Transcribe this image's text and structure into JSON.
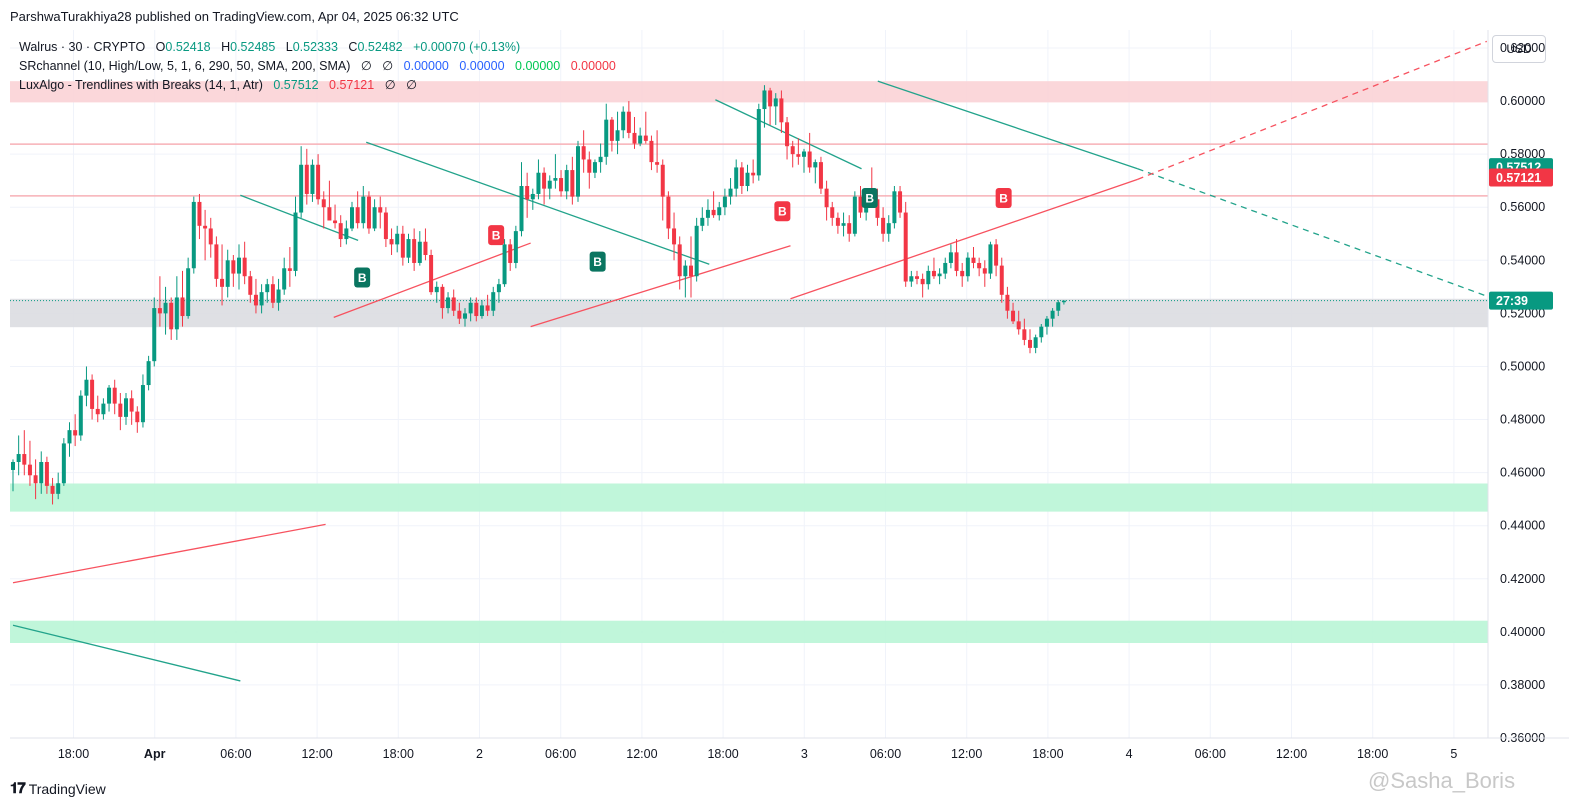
{
  "publisher": "ParshwaTurakhiya28 published on TradingView.com, Apr 04, 2025 06:32 UTC",
  "legend": {
    "symbol": "Walrus · 30 · CRYPTO",
    "o_label": "O",
    "o": "0.52418",
    "h_label": "H",
    "h": "0.52485",
    "l_label": "L",
    "l": "0.52333",
    "c_label": "C",
    "c": "0.52482",
    "change": "+0.00070 (+0.13%)",
    "sr_name": "SRchannel (10, High/Low, 5, 1, 6, 290, 50, SMA, 200, SMA)",
    "sr_null1": "∅",
    "sr_null2": "∅",
    "sr_v1": "0.00000",
    "sr_v2": "0.00000",
    "sr_v3": "0.00000",
    "sr_v4": "0.00000",
    "lux_name": "LuxAlgo - Trendlines with Breaks (14, 1, Atr)",
    "lux_v1": "0.57512",
    "lux_v2": "0.57121",
    "lux_null1": "∅",
    "lux_null2": "∅"
  },
  "currency_button": "USD",
  "footer_logo": "TradingView",
  "watermark": "@Sasha_Boris",
  "colors": {
    "up": "#089981",
    "down": "#f23645",
    "resistance_zone": "#fbd3d6",
    "support_zone": "#b9f5d6",
    "current_zone": "#dcdde1",
    "trend_down": "#22a38b",
    "trend_up": "#f7525f"
  },
  "chart_data": {
    "type": "candlestick",
    "symbol": "Walrus · 30 · CRYPTO",
    "ylim": [
      0.36,
      0.62
    ],
    "y_ticks": [
      "0.62000",
      "0.60000",
      "0.58000",
      "0.56000",
      "0.54000",
      "0.52000",
      "0.50000",
      "0.48000",
      "0.46000",
      "0.44000",
      "0.42000",
      "0.40000",
      "0.38000",
      "0.36000"
    ],
    "x_ticks": [
      "18:00",
      "Apr",
      "06:00",
      "12:00",
      "18:00",
      "2",
      "06:00",
      "12:00",
      "18:00",
      "3",
      "06:00",
      "12:00",
      "18:00",
      "4",
      "06:00",
      "12:00",
      "18:00",
      "5"
    ],
    "price_labels": [
      {
        "text": "0.57512",
        "value": 0.57512,
        "color": "#089981"
      },
      {
        "text": "0.57121",
        "value": 0.57121,
        "color": "#f23645"
      },
      {
        "text": "27:39",
        "value": 0.5248,
        "color": "#089981"
      }
    ],
    "zones": [
      {
        "from": 0.5995,
        "to": 0.6075,
        "kind": "resistance"
      },
      {
        "from": 0.5148,
        "to": 0.5255,
        "kind": "current"
      },
      {
        "from": 0.4453,
        "to": 0.4559,
        "kind": "support"
      },
      {
        "from": 0.3958,
        "to": 0.4042,
        "kind": "support"
      }
    ],
    "levels": [
      0.5838,
      0.5643
    ],
    "trendlines": [
      {
        "kind": "down",
        "from": [
          0.0,
          0.4025
        ],
        "to": [
          5.6,
          0.3815
        ]
      },
      {
        "kind": "up",
        "from": [
          0.0,
          0.4185
        ],
        "to": [
          7.7,
          0.4405
        ]
      },
      {
        "kind": "down",
        "from": [
          5.6,
          0.5645
        ],
        "to": [
          8.5,
          0.5475
        ]
      },
      {
        "kind": "up",
        "from": [
          7.9,
          0.5185
        ],
        "to": [
          12.75,
          0.5465
        ]
      },
      {
        "kind": "down",
        "from": [
          8.7,
          0.5845
        ],
        "to": [
          17.15,
          0.5385
        ]
      },
      {
        "kind": "up",
        "from": [
          12.75,
          0.515
        ],
        "to": [
          19.15,
          0.5455
        ]
      },
      {
        "kind": "down",
        "from": [
          17.3,
          0.6005
        ],
        "to": [
          20.9,
          0.5745
        ]
      },
      {
        "kind": "up",
        "from": [
          19.15,
          0.5255
        ],
        "to": [
          27.7,
          0.5705
        ]
      },
      {
        "kind": "down",
        "from": [
          21.3,
          0.6075
        ],
        "to": [
          27.7,
          0.5745
        ]
      },
      {
        "kind": "down_dashed",
        "from": [
          27.7,
          0.5745
        ],
        "to": [
          36.3,
          0.5265
        ]
      },
      {
        "kind": "up_dashed",
        "from": [
          27.7,
          0.5705
        ],
        "to": [
          36.3,
          0.6225
        ]
      }
    ],
    "signals": [
      {
        "label": "B",
        "kind": "up",
        "x": 8.6,
        "price": 0.5335
      },
      {
        "label": "B",
        "kind": "down",
        "x": 11.9,
        "price": 0.5495
      },
      {
        "label": "B",
        "kind": "up",
        "x": 14.4,
        "price": 0.5395
      },
      {
        "label": "B",
        "kind": "down",
        "x": 18.95,
        "price": 0.5585
      },
      {
        "label": "B",
        "kind": "up",
        "x": 21.1,
        "price": 0.5635
      },
      {
        "label": "B",
        "kind": "down",
        "x": 24.4,
        "price": 0.5635
      }
    ],
    "candles": [
      [
        0.461,
        0.465,
        0.453,
        0.464
      ],
      [
        0.464,
        0.474,
        0.459,
        0.467
      ],
      [
        0.467,
        0.476,
        0.459,
        0.463
      ],
      [
        0.463,
        0.472,
        0.455,
        0.459
      ],
      [
        0.459,
        0.465,
        0.45,
        0.456
      ],
      [
        0.456,
        0.468,
        0.452,
        0.464
      ],
      [
        0.464,
        0.466,
        0.452,
        0.455
      ],
      [
        0.455,
        0.458,
        0.448,
        0.452
      ],
      [
        0.452,
        0.46,
        0.45,
        0.456
      ],
      [
        0.456,
        0.473,
        0.455,
        0.471
      ],
      [
        0.471,
        0.479,
        0.466,
        0.476
      ],
      [
        0.476,
        0.482,
        0.47,
        0.474
      ],
      [
        0.474,
        0.491,
        0.472,
        0.489
      ],
      [
        0.489,
        0.5,
        0.485,
        0.495
      ],
      [
        0.495,
        0.497,
        0.48,
        0.484
      ],
      [
        0.484,
        0.489,
        0.479,
        0.482
      ],
      [
        0.482,
        0.488,
        0.48,
        0.486
      ],
      [
        0.486,
        0.493,
        0.483,
        0.492
      ],
      [
        0.492,
        0.495,
        0.482,
        0.486
      ],
      [
        0.486,
        0.49,
        0.476,
        0.481
      ],
      [
        0.481,
        0.49,
        0.478,
        0.488
      ],
      [
        0.488,
        0.491,
        0.478,
        0.483
      ],
      [
        0.483,
        0.485,
        0.475,
        0.479
      ],
      [
        0.479,
        0.497,
        0.477,
        0.493
      ],
      [
        0.493,
        0.504,
        0.491,
        0.502
      ],
      [
        0.502,
        0.526,
        0.5,
        0.522
      ],
      [
        0.522,
        0.534,
        0.515,
        0.52
      ],
      [
        0.52,
        0.53,
        0.512,
        0.524
      ],
      [
        0.524,
        0.526,
        0.51,
        0.514
      ],
      [
        0.514,
        0.534,
        0.51,
        0.526
      ],
      [
        0.526,
        0.536,
        0.515,
        0.519
      ],
      [
        0.519,
        0.541,
        0.518,
        0.537
      ],
      [
        0.537,
        0.564,
        0.535,
        0.562
      ],
      [
        0.562,
        0.565,
        0.548,
        0.553
      ],
      [
        0.553,
        0.559,
        0.54,
        0.552
      ],
      [
        0.552,
        0.556,
        0.541,
        0.546
      ],
      [
        0.546,
        0.549,
        0.53,
        0.533
      ],
      [
        0.533,
        0.546,
        0.523,
        0.53
      ],
      [
        0.53,
        0.544,
        0.526,
        0.54
      ],
      [
        0.54,
        0.542,
        0.53,
        0.535
      ],
      [
        0.535,
        0.546,
        0.529,
        0.541
      ],
      [
        0.541,
        0.547,
        0.531,
        0.534
      ],
      [
        0.534,
        0.536,
        0.524,
        0.527
      ],
      [
        0.527,
        0.533,
        0.52,
        0.523
      ],
      [
        0.523,
        0.531,
        0.52,
        0.528
      ],
      [
        0.528,
        0.533,
        0.524,
        0.531
      ],
      [
        0.531,
        0.534,
        0.522,
        0.524
      ],
      [
        0.524,
        0.533,
        0.521,
        0.529
      ],
      [
        0.529,
        0.541,
        0.527,
        0.537
      ],
      [
        0.537,
        0.545,
        0.53,
        0.536
      ],
      [
        0.536,
        0.564,
        0.534,
        0.558
      ],
      [
        0.558,
        0.583,
        0.556,
        0.576
      ],
      [
        0.576,
        0.582,
        0.561,
        0.565
      ],
      [
        0.565,
        0.578,
        0.562,
        0.576
      ],
      [
        0.576,
        0.58,
        0.561,
        0.563
      ],
      [
        0.563,
        0.566,
        0.552,
        0.56
      ],
      [
        0.56,
        0.57,
        0.557,
        0.555
      ],
      [
        0.555,
        0.561,
        0.552,
        0.554
      ],
      [
        0.554,
        0.557,
        0.545,
        0.548
      ],
      [
        0.548,
        0.555,
        0.546,
        0.552
      ],
      [
        0.552,
        0.562,
        0.551,
        0.56
      ],
      [
        0.56,
        0.566,
        0.552,
        0.554
      ],
      [
        0.554,
        0.568,
        0.552,
        0.564
      ],
      [
        0.564,
        0.566,
        0.55,
        0.552
      ],
      [
        0.552,
        0.563,
        0.551,
        0.56
      ],
      [
        0.56,
        0.564,
        0.552,
        0.558
      ],
      [
        0.558,
        0.56,
        0.545,
        0.548
      ],
      [
        0.548,
        0.552,
        0.542,
        0.546
      ],
      [
        0.546,
        0.553,
        0.543,
        0.55
      ],
      [
        0.55,
        0.553,
        0.538,
        0.541
      ],
      [
        0.541,
        0.55,
        0.539,
        0.548
      ],
      [
        0.548,
        0.552,
        0.536,
        0.539
      ],
      [
        0.539,
        0.551,
        0.538,
        0.547
      ],
      [
        0.547,
        0.552,
        0.54,
        0.542
      ],
      [
        0.542,
        0.544,
        0.527,
        0.528
      ],
      [
        0.528,
        0.532,
        0.524,
        0.53
      ],
      [
        0.53,
        0.531,
        0.518,
        0.522
      ],
      [
        0.522,
        0.528,
        0.52,
        0.526
      ],
      [
        0.526,
        0.529,
        0.519,
        0.521
      ],
      [
        0.521,
        0.524,
        0.516,
        0.518
      ],
      [
        0.518,
        0.522,
        0.515,
        0.52
      ],
      [
        0.52,
        0.526,
        0.517,
        0.524
      ],
      [
        0.524,
        0.526,
        0.517,
        0.519
      ],
      [
        0.519,
        0.525,
        0.518,
        0.523
      ],
      [
        0.523,
        0.527,
        0.519,
        0.521
      ],
      [
        0.521,
        0.53,
        0.519,
        0.528
      ],
      [
        0.528,
        0.533,
        0.524,
        0.531
      ],
      [
        0.531,
        0.548,
        0.53,
        0.546
      ],
      [
        0.546,
        0.548,
        0.536,
        0.539
      ],
      [
        0.539,
        0.553,
        0.537,
        0.551
      ],
      [
        0.551,
        0.577,
        0.549,
        0.568
      ],
      [
        0.568,
        0.573,
        0.556,
        0.563
      ],
      [
        0.563,
        0.567,
        0.559,
        0.565
      ],
      [
        0.565,
        0.578,
        0.563,
        0.573
      ],
      [
        0.573,
        0.575,
        0.561,
        0.567
      ],
      [
        0.567,
        0.572,
        0.563,
        0.57
      ],
      [
        0.57,
        0.58,
        0.567,
        0.571
      ],
      [
        0.571,
        0.574,
        0.564,
        0.566
      ],
      [
        0.566,
        0.576,
        0.563,
        0.574
      ],
      [
        0.574,
        0.579,
        0.561,
        0.564
      ],
      [
        0.564,
        0.585,
        0.562,
        0.583
      ],
      [
        0.583,
        0.589,
        0.573,
        0.578
      ],
      [
        0.578,
        0.581,
        0.567,
        0.573
      ],
      [
        0.573,
        0.578,
        0.571,
        0.577
      ],
      [
        0.577,
        0.584,
        0.573,
        0.579
      ],
      [
        0.579,
        0.599,
        0.576,
        0.593
      ],
      [
        0.593,
        0.594,
        0.581,
        0.585
      ],
      [
        0.585,
        0.596,
        0.58,
        0.589
      ],
      [
        0.589,
        0.598,
        0.586,
        0.596
      ],
      [
        0.596,
        0.6,
        0.586,
        0.588
      ],
      [
        0.588,
        0.594,
        0.582,
        0.584
      ],
      [
        0.584,
        0.59,
        0.583,
        0.587
      ],
      [
        0.587,
        0.596,
        0.584,
        0.585
      ],
      [
        0.585,
        0.587,
        0.574,
        0.577
      ],
      [
        0.577,
        0.589,
        0.573,
        0.576
      ],
      [
        0.576,
        0.578,
        0.555,
        0.564
      ],
      [
        0.564,
        0.566,
        0.548,
        0.552
      ],
      [
        0.552,
        0.558,
        0.54,
        0.546
      ],
      [
        0.546,
        0.549,
        0.529,
        0.534
      ],
      [
        0.534,
        0.54,
        0.526,
        0.538
      ],
      [
        0.538,
        0.549,
        0.526,
        0.534
      ],
      [
        0.534,
        0.556,
        0.532,
        0.553
      ],
      [
        0.553,
        0.56,
        0.551,
        0.556
      ],
      [
        0.556,
        0.563,
        0.553,
        0.559
      ],
      [
        0.559,
        0.566,
        0.556,
        0.557
      ],
      [
        0.557,
        0.562,
        0.555,
        0.56
      ],
      [
        0.56,
        0.567,
        0.557,
        0.564
      ],
      [
        0.564,
        0.571,
        0.561,
        0.567
      ],
      [
        0.567,
        0.578,
        0.564,
        0.575
      ],
      [
        0.575,
        0.577,
        0.565,
        0.568
      ],
      [
        0.568,
        0.576,
        0.566,
        0.573
      ],
      [
        0.573,
        0.578,
        0.569,
        0.572
      ],
      [
        0.572,
        0.599,
        0.57,
        0.597
      ],
      [
        0.597,
        0.606,
        0.59,
        0.604
      ],
      [
        0.604,
        0.605,
        0.591,
        0.598
      ],
      [
        0.598,
        0.603,
        0.591,
        0.601
      ],
      [
        0.601,
        0.604,
        0.588,
        0.592
      ],
      [
        0.592,
        0.594,
        0.578,
        0.583
      ],
      [
        0.583,
        0.585,
        0.575,
        0.58
      ],
      [
        0.58,
        0.586,
        0.576,
        0.579
      ],
      [
        0.579,
        0.582,
        0.573,
        0.581
      ],
      [
        0.581,
        0.588,
        0.573,
        0.575
      ],
      [
        0.575,
        0.578,
        0.569,
        0.577
      ],
      [
        0.577,
        0.579,
        0.565,
        0.567
      ],
      [
        0.567,
        0.57,
        0.555,
        0.56
      ],
      [
        0.56,
        0.562,
        0.553,
        0.556
      ],
      [
        0.556,
        0.558,
        0.55,
        0.553
      ],
      [
        0.553,
        0.558,
        0.549,
        0.554
      ],
      [
        0.554,
        0.557,
        0.547,
        0.55
      ],
      [
        0.55,
        0.566,
        0.549,
        0.564
      ],
      [
        0.564,
        0.568,
        0.556,
        0.558
      ],
      [
        0.558,
        0.566,
        0.555,
        0.564
      ],
      [
        0.564,
        0.575,
        0.562,
        0.563
      ],
      [
        0.563,
        0.567,
        0.553,
        0.556
      ],
      [
        0.556,
        0.56,
        0.547,
        0.55
      ],
      [
        0.55,
        0.557,
        0.547,
        0.554
      ],
      [
        0.554,
        0.568,
        0.552,
        0.566
      ],
      [
        0.566,
        0.568,
        0.556,
        0.558
      ],
      [
        0.558,
        0.562,
        0.53,
        0.532
      ],
      [
        0.532,
        0.536,
        0.53,
        0.534
      ],
      [
        0.534,
        0.536,
        0.531,
        0.533
      ],
      [
        0.533,
        0.535,
        0.526,
        0.531
      ],
      [
        0.531,
        0.538,
        0.529,
        0.536
      ],
      [
        0.536,
        0.541,
        0.533,
        0.534
      ],
      [
        0.534,
        0.537,
        0.531,
        0.535
      ],
      [
        0.535,
        0.541,
        0.533,
        0.539
      ],
      [
        0.539,
        0.546,
        0.537,
        0.543
      ],
      [
        0.543,
        0.548,
        0.534,
        0.536
      ],
      [
        0.536,
        0.539,
        0.53,
        0.534
      ],
      [
        0.534,
        0.543,
        0.532,
        0.541
      ],
      [
        0.541,
        0.545,
        0.537,
        0.539
      ],
      [
        0.539,
        0.541,
        0.534,
        0.537
      ],
      [
        0.537,
        0.54,
        0.53,
        0.535
      ],
      [
        0.535,
        0.547,
        0.533,
        0.546
      ],
      [
        0.546,
        0.548,
        0.534,
        0.538
      ],
      [
        0.538,
        0.541,
        0.524,
        0.527
      ],
      [
        0.527,
        0.53,
        0.518,
        0.521
      ],
      [
        0.521,
        0.524,
        0.516,
        0.517
      ],
      [
        0.517,
        0.521,
        0.512,
        0.514
      ],
      [
        0.514,
        0.518,
        0.508,
        0.51
      ],
      [
        0.51,
        0.514,
        0.505,
        0.507
      ],
      [
        0.507,
        0.512,
        0.505,
        0.511
      ],
      [
        0.511,
        0.516,
        0.509,
        0.515
      ],
      [
        0.515,
        0.519,
        0.512,
        0.518
      ],
      [
        0.518,
        0.522,
        0.515,
        0.521
      ],
      [
        0.521,
        0.525,
        0.519,
        0.5242
      ],
      [
        0.5242,
        0.52485,
        0.52333,
        0.52482
      ]
    ]
  }
}
